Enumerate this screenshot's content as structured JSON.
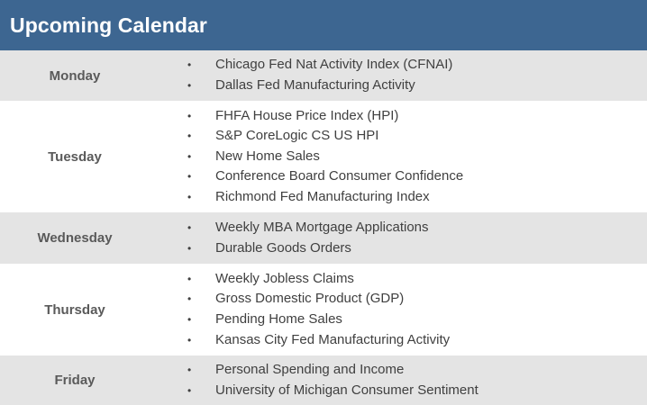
{
  "header": {
    "title": "Upcoming Calendar",
    "color": "#3d6691"
  },
  "bullet_glyph": "•",
  "days": [
    {
      "day": "Monday",
      "shaded": true,
      "events": [
        "Chicago Fed Nat Activity Index (CFNAI)",
        "Dallas Fed Manufacturing Activity"
      ]
    },
    {
      "day": "Tuesday",
      "shaded": false,
      "events": [
        "FHFA House Price Index (HPI)",
        "S&P CoreLogic CS US HPI",
        "New Home Sales",
        "Conference Board Consumer Confidence",
        "Richmond Fed Manufacturing Index"
      ]
    },
    {
      "day": "Wednesday",
      "shaded": true,
      "events": [
        "Weekly MBA Mortgage Applications",
        "Durable Goods Orders"
      ]
    },
    {
      "day": "Thursday",
      "shaded": false,
      "events": [
        "Weekly Jobless Claims",
        "Gross Domestic Product (GDP)",
        "Pending Home Sales",
        "Kansas City Fed Manufacturing Activity"
      ]
    },
    {
      "day": "Friday",
      "shaded": true,
      "events": [
        "Personal Spending and Income",
        "University of Michigan Consumer Sentiment"
      ]
    }
  ]
}
